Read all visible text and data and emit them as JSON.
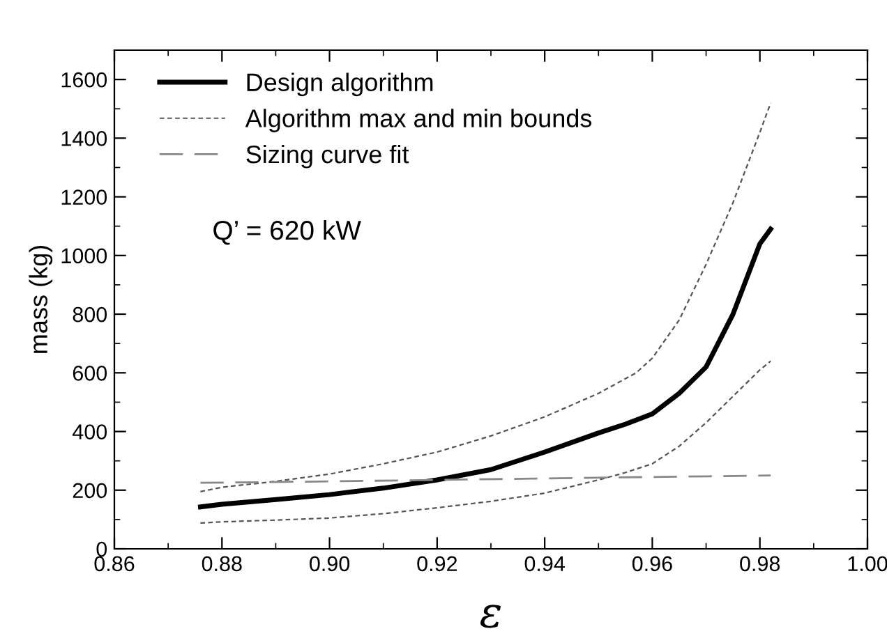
{
  "chart_data": {
    "type": "line",
    "xlabel": "ε",
    "ylabel": "mass (kg)",
    "series": [
      {
        "name": "Design algorithm",
        "color": "#000000",
        "line_style": "solid",
        "x": [
          0.876,
          0.88,
          0.89,
          0.9,
          0.91,
          0.92,
          0.93,
          0.94,
          0.95,
          0.955,
          0.96,
          0.965,
          0.97,
          0.975,
          0.98,
          0.982
        ],
        "values": [
          143,
          152,
          168,
          185,
          207,
          235,
          270,
          330,
          395,
          425,
          460,
          530,
          620,
          800,
          1040,
          1090
        ]
      },
      {
        "name": "Algorithm max and min bounds",
        "color": "#555555",
        "line_style": "dotted",
        "x": [
          0.876,
          0.88,
          0.89,
          0.9,
          0.91,
          0.92,
          0.93,
          0.94,
          0.95,
          0.957,
          0.96,
          0.965,
          0.97,
          0.975,
          0.98,
          0.982
        ],
        "values": [
          195,
          210,
          230,
          255,
          290,
          330,
          385,
          450,
          530,
          600,
          650,
          780,
          970,
          1180,
          1420,
          1520
        ]
      },
      {
        "color": "#555555",
        "line_style": "dotted",
        "x": [
          0.876,
          0.88,
          0.89,
          0.9,
          0.91,
          0.92,
          0.93,
          0.94,
          0.95,
          0.955,
          0.96,
          0.965,
          0.97,
          0.975,
          0.98,
          0.982
        ],
        "values": [
          88,
          92,
          98,
          105,
          120,
          140,
          162,
          190,
          235,
          260,
          290,
          350,
          430,
          520,
          610,
          640
        ]
      },
      {
        "name": "Sizing curve fit",
        "color": "#888888",
        "line_style": "dashed",
        "x": [
          0.876,
          0.9,
          0.92,
          0.94,
          0.96,
          0.982
        ],
        "values": [
          225,
          230,
          235,
          240,
          245,
          250
        ]
      }
    ],
    "xlim": [
      0.86,
      1.0
    ],
    "xticks": [
      {
        "value": 0.86,
        "label": "0.86"
      },
      {
        "value": 0.88,
        "label": "0.88"
      },
      {
        "value": 0.9,
        "label": "0.90"
      },
      {
        "value": 0.92,
        "label": "0.92"
      },
      {
        "value": 0.94,
        "label": "0.94"
      },
      {
        "value": 0.96,
        "label": "0.96"
      },
      {
        "value": 0.98,
        "label": "0.98"
      },
      {
        "value": 1.0,
        "label": "1.00"
      }
    ],
    "ylim": [
      0,
      1700
    ],
    "yticks": [
      0,
      200,
      400,
      600,
      800,
      1000,
      1200,
      1400,
      1600
    ],
    "annotations": [
      "Q’ = 620 kW"
    ],
    "legend": "top left",
    "grid": false
  }
}
